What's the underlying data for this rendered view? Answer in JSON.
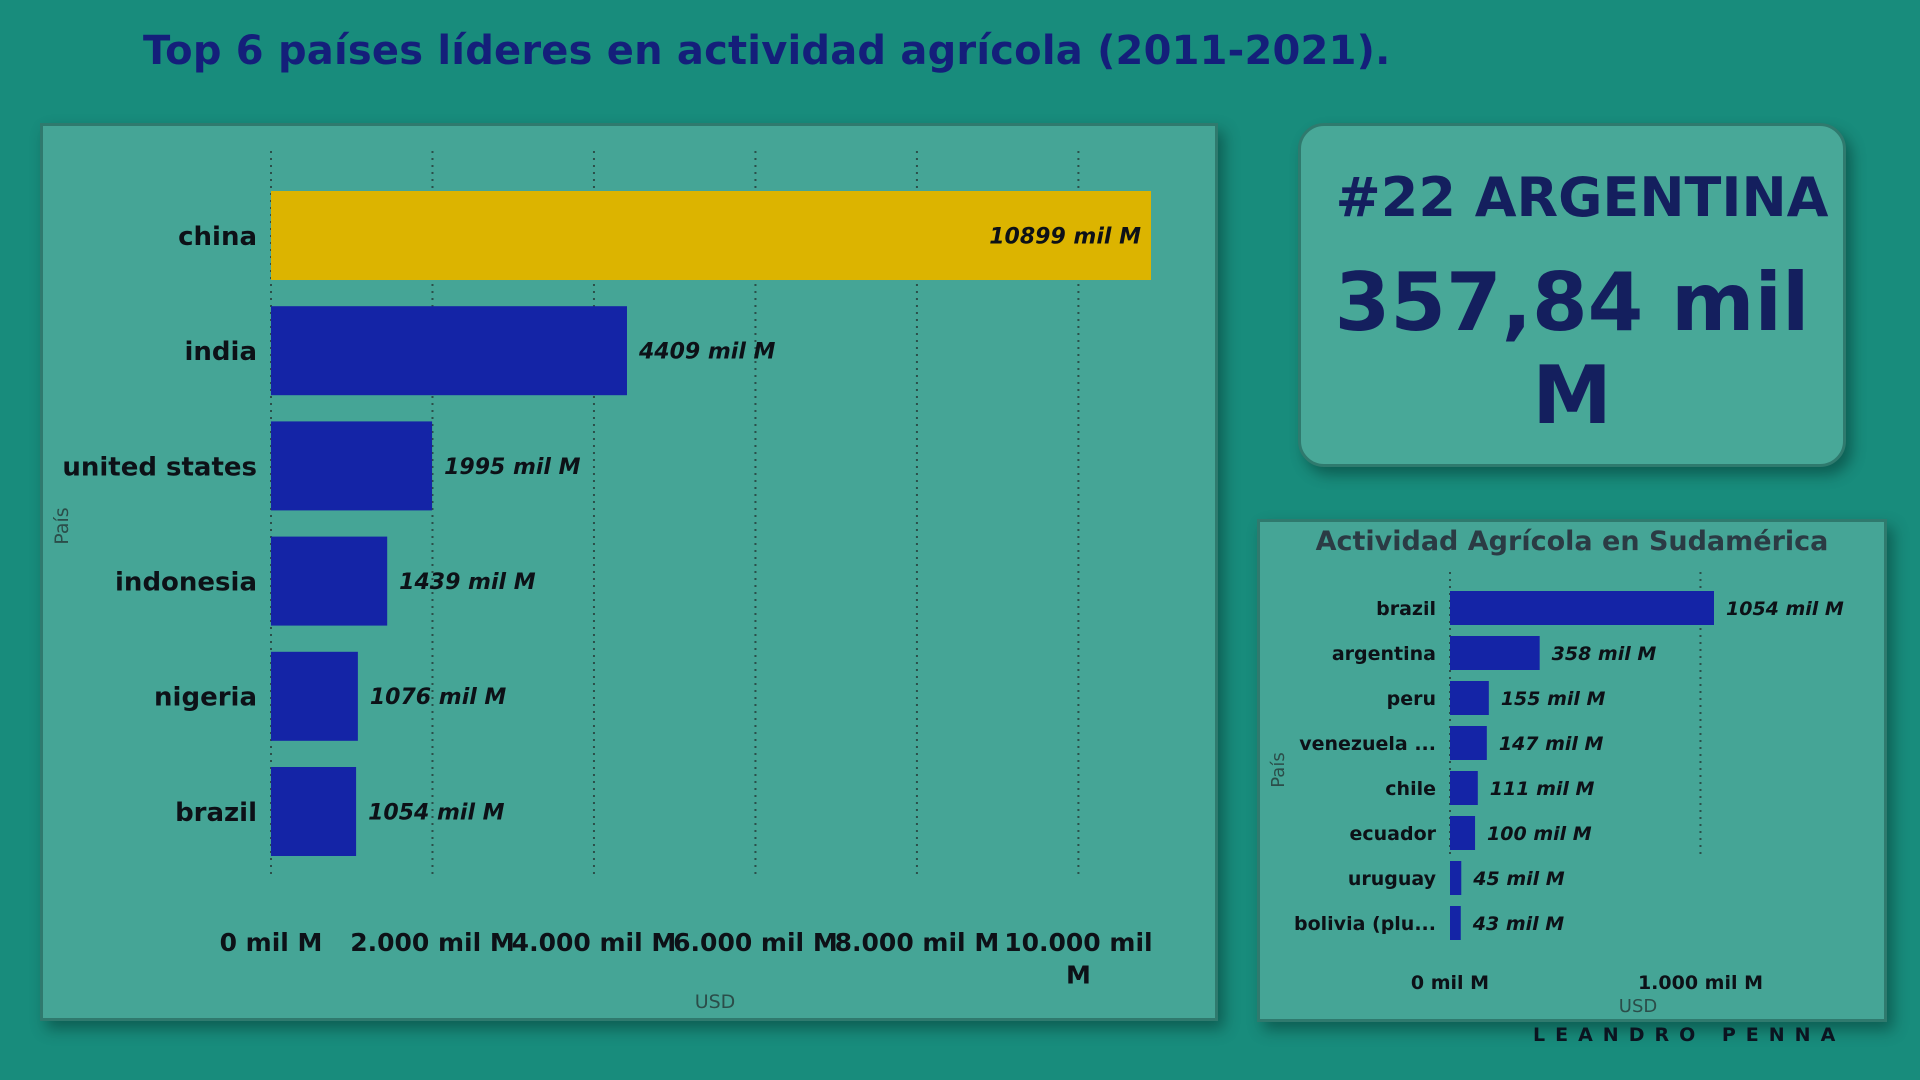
{
  "page": {
    "title": "Top 6 países líderes en actividad agrícola (2011-2021).",
    "signature": "LEANDRO PENNA"
  },
  "kpi": {
    "rank": "#22 ARGENTINA",
    "value": "357,84 mil M"
  },
  "colors": {
    "background": "#188c7c",
    "panel": "#45a596",
    "bar": "#1424a6",
    "highlight": "#dcb400",
    "title": "#141f7a"
  },
  "chart_data": [
    {
      "type": "bar",
      "orientation": "horizontal",
      "title": "",
      "xlabel": "USD",
      "ylabel": "País",
      "xlim": [
        0,
        10899
      ],
      "grid": true,
      "categories": [
        "china",
        "india",
        "united states",
        "indonesia",
        "nigeria",
        "brazil"
      ],
      "values": [
        10899,
        4409,
        1995,
        1439,
        1076,
        1054
      ],
      "data_labels": [
        "10899 mil M",
        "4409 mil M",
        "1995 mil M",
        "1439 mil M",
        "1076 mil M",
        "1054 mil M"
      ],
      "highlight_category": "china",
      "xticks": [
        {
          "value": 0,
          "label": "0 mil M"
        },
        {
          "value": 2000,
          "label": "2.000 mil M"
        },
        {
          "value": 4000,
          "label": "4.000 mil M"
        },
        {
          "value": 6000,
          "label": "6.000 mil M"
        },
        {
          "value": 8000,
          "label": "8.000 mil M"
        },
        {
          "value": 10000,
          "label": "10.000 mil M"
        }
      ]
    },
    {
      "type": "bar",
      "orientation": "horizontal",
      "title": "Actividad Agrícola en Sudamérica",
      "xlabel": "USD",
      "ylabel": "País",
      "xlim": [
        0,
        1054
      ],
      "grid": true,
      "categories": [
        "brazil",
        "argentina",
        "peru",
        "venezuela ...",
        "chile",
        "ecuador",
        "uruguay",
        "bolivia (plu..."
      ],
      "values": [
        1054,
        358,
        155,
        147,
        111,
        100,
        45,
        43
      ],
      "data_labels": [
        "1054 mil M",
        "358 mil M",
        "155 mil M",
        "147 mil M",
        "111 mil M",
        "100 mil M",
        "45 mil M",
        "43 mil M"
      ],
      "xticks": [
        {
          "value": 0,
          "label": "0 mil M"
        },
        {
          "value": 1000,
          "label": "1.000 mil M"
        }
      ]
    }
  ]
}
